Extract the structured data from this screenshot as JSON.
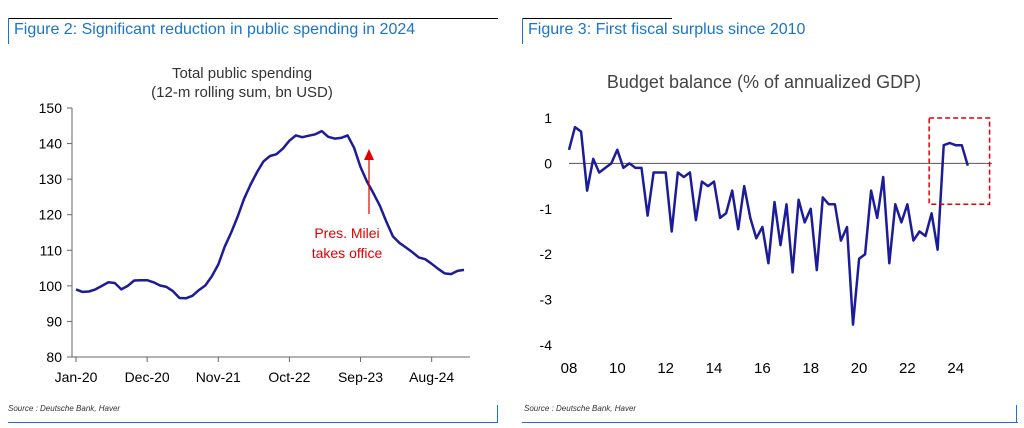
{
  "figures": {
    "left_title": "Figure 2: Significant reduction in public spending in 2024",
    "right_title": "Figure 3: First fiscal surplus since 2010",
    "left_source": "Source : Deutsche Bank, Haver",
    "right_source": "Source : Deutsche Bank, Haver"
  },
  "colors": {
    "accent": "#1a74c9",
    "line": "#1c1c9a",
    "annotation": "#e00000"
  },
  "chart_data": [
    {
      "type": "line",
      "title": "Total public spending",
      "subtitle": "(12-m rolling sum, bn USD)",
      "ylim": [
        80,
        150
      ],
      "yticks": [
        80,
        90,
        100,
        110,
        120,
        130,
        140,
        150
      ],
      "xtick_labels": [
        "Jan-20",
        "Dec-20",
        "Nov-21",
        "Oct-22",
        "Sep-23",
        "Aug-24"
      ],
      "grid": false,
      "annotation": {
        "line1": "Pres. Milei",
        "line2": "takes office",
        "x": 45
      },
      "series": [
        {
          "x": [
            0,
            1,
            2,
            3,
            4,
            5,
            6,
            7,
            8,
            9,
            10,
            11,
            12,
            13,
            14,
            15,
            16,
            17,
            18,
            19,
            20,
            21,
            22,
            23,
            24,
            25,
            26,
            27,
            28,
            29,
            30,
            31,
            32,
            33,
            34,
            35,
            36,
            37,
            38,
            39,
            40,
            41,
            42,
            43,
            44,
            45,
            46,
            47,
            48,
            49,
            50,
            51,
            52,
            53,
            54,
            55,
            56,
            57,
            58,
            59,
            60
          ],
          "values": [
            99,
            98.3,
            98.4,
            99,
            100,
            101,
            100.8,
            99,
            100,
            101.5,
            101.6,
            101.6,
            101,
            100.1,
            99.7,
            98.5,
            96.6,
            96.5,
            97.2,
            98.8,
            100.1,
            102.7,
            106,
            111,
            115,
            119.5,
            124.5,
            128.5,
            132,
            135,
            136.5,
            137,
            138.6,
            140.8,
            142.3,
            141.8,
            142.2,
            142.6,
            143.5,
            141.9,
            141.4,
            141.6,
            142.3,
            138.8,
            133.4,
            129.3,
            126,
            122.5,
            118,
            113.9,
            112.1,
            110.8,
            109.5,
            108,
            107.5,
            106.2,
            104.8,
            103.5,
            103.3,
            104.2,
            104.5
          ]
        }
      ]
    },
    {
      "type": "line",
      "title": "Budget balance (% of annualized GDP)",
      "ylim": [
        -4,
        1
      ],
      "yticks": [
        -4,
        -3,
        -2,
        -1,
        0,
        1
      ],
      "xtick_labels": [
        "08",
        "10",
        "12",
        "14",
        "16",
        "18",
        "20",
        "22",
        "24"
      ],
      "xlim": [
        2008,
        2025.5
      ],
      "grid": false,
      "highlight_box": {
        "x": [
          2022.9,
          2025.4
        ],
        "y": [
          -0.9,
          1.0
        ],
        "style": "red dashed"
      },
      "series": [
        {
          "x": [
            2008,
            2008.25,
            2008.5,
            2008.75,
            2009,
            2009.25,
            2009.5,
            2009.75,
            2010,
            2010.25,
            2010.5,
            2010.75,
            2011,
            2011.25,
            2011.5,
            2011.75,
            2012,
            2012.25,
            2012.5,
            2012.75,
            2013,
            2013.25,
            2013.5,
            2013.75,
            2014,
            2014.25,
            2014.5,
            2014.75,
            2015,
            2015.25,
            2015.5,
            2015.75,
            2016,
            2016.25,
            2016.5,
            2016.75,
            2017,
            2017.25,
            2017.5,
            2017.75,
            2018,
            2018.25,
            2018.5,
            2018.75,
            2019,
            2019.25,
            2019.5,
            2019.75,
            2020,
            2020.25,
            2020.5,
            2020.75,
            2021,
            2021.25,
            2021.5,
            2021.75,
            2022,
            2022.25,
            2022.5,
            2022.75,
            2023,
            2023.25,
            2023.5,
            2023.75,
            2024,
            2024.25,
            2024.5
          ],
          "values": [
            0.3,
            0.8,
            0.7,
            -0.6,
            0.1,
            -0.2,
            -0.1,
            0,
            0.3,
            -0.1,
            0,
            -0.1,
            -0.1,
            -1.15,
            -0.2,
            -0.2,
            -0.2,
            -1.5,
            -0.2,
            -0.3,
            -0.2,
            -1.25,
            -0.4,
            -0.5,
            -0.4,
            -1.2,
            -1.1,
            -0.6,
            -1.45,
            -0.5,
            -1.2,
            -1.65,
            -1.4,
            -2.2,
            -0.85,
            -1.8,
            -0.9,
            -2.4,
            -0.8,
            -1.3,
            -1,
            -2.35,
            -0.75,
            -0.9,
            -0.9,
            -1.7,
            -1.4,
            -3.55,
            -2.1,
            -2,
            -0.6,
            -1.2,
            -0.3,
            -2.2,
            -0.9,
            -1.3,
            -0.9,
            -1.7,
            -1.5,
            -1.6,
            -1.1,
            -1.9,
            0.4,
            0.45,
            0.4,
            0.4,
            -0.05
          ]
        }
      ]
    }
  ]
}
